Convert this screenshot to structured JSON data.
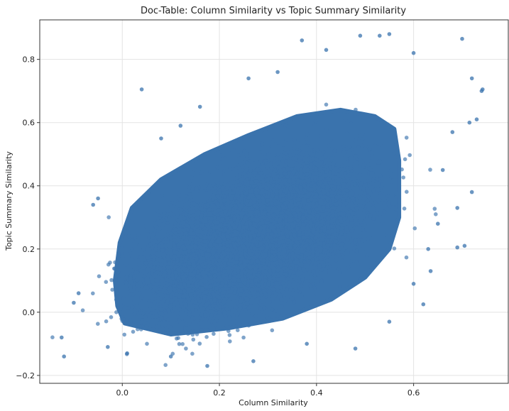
{
  "chart_data": {
    "type": "scatter",
    "title": "Doc-Table: Column Similarity vs Topic Summary Similarity",
    "xlabel": "Column Similarity",
    "ylabel": "Topic Summary Similarity",
    "xlim": [
      -0.17,
      0.795
    ],
    "ylim": [
      -0.225,
      0.925
    ],
    "xticks": [
      0.0,
      0.2,
      0.4,
      0.6
    ],
    "yticks": [
      -0.2,
      0.0,
      0.2,
      0.4,
      0.6,
      0.8
    ],
    "xtick_labels": [
      "0.0",
      "0.2",
      "0.4",
      "0.6"
    ],
    "ytick_labels": [
      "−0.2",
      "0.0",
      "0.2",
      "0.4",
      "0.6",
      "0.8"
    ],
    "grid": true,
    "color": "#3a73ad",
    "series": [
      {
        "core": {
          "center": [
            0.27,
            0.24
          ],
          "sd": [
            0.1,
            0.11
          ],
          "correlation": 0.52,
          "count": 9000
        },
        "bulk": {
          "polygon": [
            [
              0.005,
              -0.035
            ],
            [
              0.1,
              -0.07
            ],
            [
              0.22,
              -0.05
            ],
            [
              0.33,
              -0.02
            ],
            [
              0.43,
              0.04
            ],
            [
              0.5,
              0.11
            ],
            [
              0.55,
              0.2
            ],
            [
              0.57,
              0.3
            ],
            [
              0.57,
              0.4
            ],
            [
              0.57,
              0.48
            ],
            [
              0.56,
              0.58
            ],
            [
              0.52,
              0.62
            ],
            [
              0.45,
              0.64
            ],
            [
              0.36,
              0.62
            ],
            [
              0.26,
              0.56
            ],
            [
              0.17,
              0.5
            ],
            [
              0.08,
              0.42
            ],
            [
              0.02,
              0.33
            ],
            [
              -0.005,
              0.22
            ],
            [
              -0.015,
              0.1
            ],
            [
              -0.01,
              0.02
            ]
          ]
        },
        "points": [
          [
            0.04,
            0.705
          ],
          [
            0.742,
            0.705
          ],
          [
            0.7,
            0.865
          ],
          [
            0.705,
            0.21
          ],
          [
            0.69,
            0.205
          ],
          [
            0.62,
            0.025
          ],
          [
            0.635,
            0.13
          ],
          [
            0.48,
            -0.115
          ],
          [
            0.175,
            -0.17
          ],
          [
            0.27,
            -0.155
          ],
          [
            -0.12,
            -0.14
          ],
          [
            -0.125,
            -0.08
          ],
          [
            0.72,
            0.38
          ],
          [
            0.69,
            0.33
          ],
          [
            0.6,
            0.82
          ],
          [
            0.49,
            0.875
          ],
          [
            0.53,
            0.875
          ],
          [
            0.55,
            0.88
          ],
          [
            0.37,
            0.86
          ],
          [
            0.26,
            0.74
          ],
          [
            0.32,
            0.76
          ],
          [
            0.68,
            0.57
          ],
          [
            0.65,
            0.28
          ],
          [
            0.63,
            0.2
          ],
          [
            -0.05,
            0.36
          ],
          [
            -0.06,
            0.34
          ],
          [
            -0.1,
            0.03
          ],
          [
            -0.09,
            0.06
          ],
          [
            0.01,
            -0.13
          ],
          [
            0.73,
            0.61
          ],
          [
            0.715,
            0.6
          ],
          [
            0.66,
            0.45
          ],
          [
            0.74,
            0.7
          ],
          [
            0.42,
            0.83
          ],
          [
            0.72,
            0.74
          ],
          [
            0.6,
            0.09
          ],
          [
            0.38,
            -0.1
          ],
          [
            0.1,
            -0.14
          ],
          [
            -0.03,
            -0.11
          ],
          [
            0.55,
            -0.03
          ],
          [
            0.12,
            0.59
          ],
          [
            0.16,
            0.65
          ],
          [
            0.08,
            0.55
          ]
        ]
      }
    ]
  }
}
